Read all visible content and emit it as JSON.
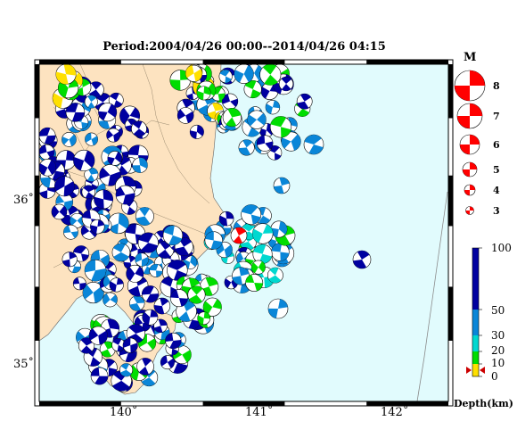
{
  "title": "Period:2004/04/26 00:00--2014/04/26 04:15",
  "axes": {
    "lon_ticks": [
      {
        "value": 140,
        "label": "140˚"
      },
      {
        "value": 141,
        "label": "141˚"
      },
      {
        "value": 142,
        "label": "142˚"
      }
    ],
    "lat_ticks": [
      {
        "value": 36,
        "label": "36˚"
      },
      {
        "value": 35,
        "label": "35˚"
      }
    ],
    "lon_range": [
      139.4,
      142.4
    ],
    "lat_range": [
      34.8,
      36.82
    ]
  },
  "colors": {
    "land": "#fde3c0",
    "sea": "#e1fbfd",
    "frame": "#000000",
    "very_deep": "#0000a0",
    "deep": "#0a86d8",
    "shallow_20_30": "#00d8d0",
    "shallow_10_20": "#00dd00",
    "shallow_0_10": "#ffe000",
    "latest_event": "#ff0000"
  },
  "magnitude_legend": {
    "title": "M",
    "items": [
      {
        "m": 8,
        "label": "8"
      },
      {
        "m": 7,
        "label": "7"
      },
      {
        "m": 6,
        "label": "6"
      },
      {
        "m": 5,
        "label": "5"
      },
      {
        "m": 4,
        "label": "4"
      },
      {
        "m": 3,
        "label": "3"
      }
    ]
  },
  "depth_legend": {
    "unit": "Depth(km)",
    "ticks": [
      {
        "value": 100,
        "label": "100"
      },
      {
        "value": 50,
        "label": "50"
      },
      {
        "value": 30,
        "label": "30"
      },
      {
        "value": 20,
        "label": "20"
      },
      {
        "value": 10,
        "label": "10"
      },
      {
        "value": 0,
        "label": "0"
      }
    ],
    "marker_depth_km": 5
  }
}
